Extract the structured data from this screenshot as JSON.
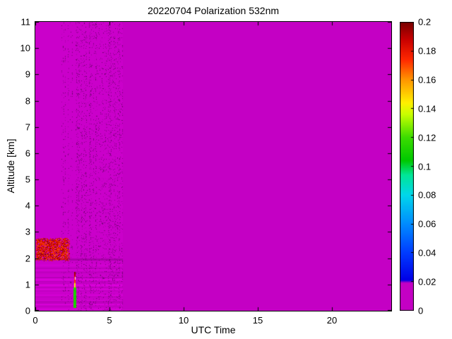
{
  "figure": {
    "title": "20220704 Polarization 532nm",
    "xlabel": "UTC Time",
    "ylabel": "Altitude [km]"
  },
  "chart_data": {
    "type": "heatmap",
    "title": "20220704 Polarization 532nm",
    "xlabel": "UTC Time",
    "ylabel": "Altitude [km]",
    "xlim": [
      0,
      24
    ],
    "ylim": [
      0,
      11
    ],
    "xticks": [
      0,
      5,
      10,
      15,
      20
    ],
    "xtick_labels": [
      "0",
      "5",
      "10",
      "15",
      "20"
    ],
    "yticks": [
      0,
      1,
      2,
      3,
      4,
      5,
      6,
      7,
      8,
      9,
      10,
      11
    ],
    "ytick_labels": [
      "0",
      "1",
      "2",
      "3",
      "4",
      "5",
      "6",
      "7",
      "8",
      "9",
      "10",
      "11"
    ],
    "grid": false,
    "legend": "colorbar-right",
    "colorbar": {
      "min": 0,
      "max": 0.2,
      "ticks": [
        0,
        0.02,
        0.04,
        0.06,
        0.08,
        0.1,
        0.12,
        0.14,
        0.16,
        0.18,
        0.2
      ],
      "tick_labels": [
        "0",
        "0.02",
        "0.04",
        "0.06",
        "0.08",
        "0.1",
        "0.12",
        "0.14",
        "0.16",
        "0.18",
        "0.2"
      ]
    },
    "background_value": 0,
    "background_color": "#C400C4",
    "colormap_stops": [
      [
        0.0,
        196,
        0,
        196
      ],
      [
        0.095,
        196,
        0,
        196
      ],
      [
        0.105,
        0,
        0,
        230
      ],
      [
        0.2,
        0,
        60,
        255
      ],
      [
        0.3,
        0,
        140,
        255
      ],
      [
        0.4,
        0,
        215,
        235
      ],
      [
        0.47,
        0,
        230,
        150
      ],
      [
        0.52,
        0,
        200,
        0
      ],
      [
        0.6,
        60,
        220,
        0
      ],
      [
        0.68,
        200,
        255,
        0
      ],
      [
        0.72,
        255,
        240,
        0
      ],
      [
        0.8,
        255,
        150,
        0
      ],
      [
        0.87,
        255,
        40,
        0
      ],
      [
        0.94,
        200,
        0,
        0
      ],
      [
        1.0,
        120,
        0,
        0
      ]
    ],
    "seed": 20220704,
    "regions": {
      "left_zone": {
        "x_end": 5.92,
        "brighten": 1.03
      },
      "noise": {
        "x": [
          1.75,
          5.92
        ],
        "density": 0.16
      },
      "boundary_band": {
        "alt_top": 1.85
      },
      "under_line": {
        "alt": 1.95
      },
      "smoke_layer": {
        "x": [
          0.05,
          2.35
        ],
        "alt": [
          1.88,
          2.78
        ],
        "density": 0.8,
        "value": [
          0.165,
          0.2
        ]
      },
      "plume": {
        "x_center": 2.68,
        "alt": [
          0.12,
          1.48
        ],
        "green_top": 0.88,
        "yellow_top": 1.06,
        "white_alt": [
          1.18,
          1.3
        ],
        "width_lower": 0.1,
        "width_upper": 0.055
      }
    }
  }
}
